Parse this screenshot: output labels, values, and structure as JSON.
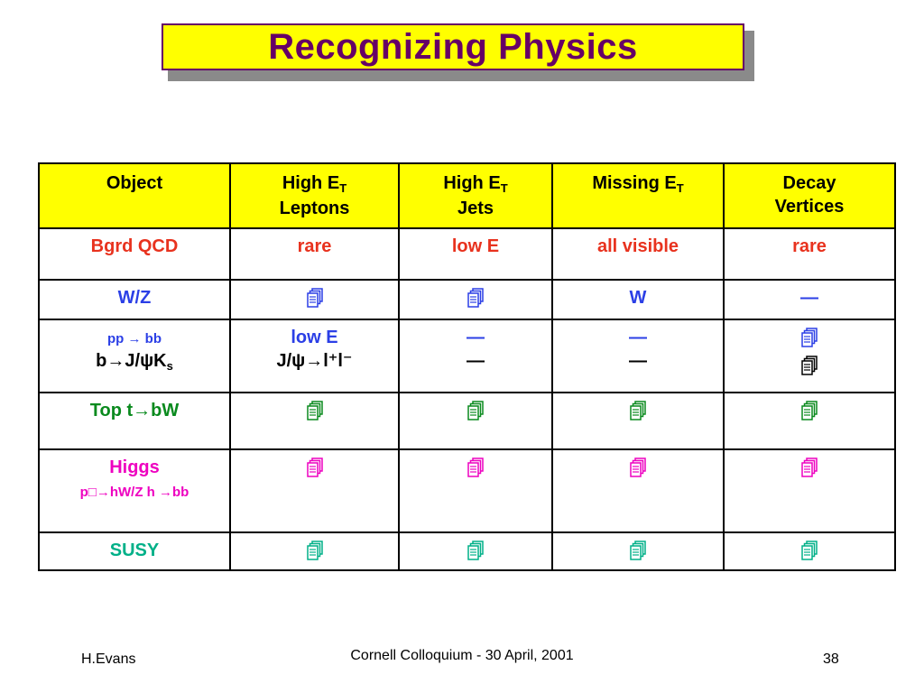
{
  "slide": {
    "title": "Recognizing Physics",
    "colors": {
      "title_text": "#660066",
      "title_bg": "#ffff00",
      "header_bg": "#ffff00",
      "red": "#e8321e",
      "blue": "#2b3fe6",
      "green": "#0a8a1e",
      "magenta": "#ee00c0",
      "teal": "#00b088"
    }
  },
  "table": {
    "headers": {
      "object": "Object",
      "leptons_line1": "High E",
      "leptons_sub": "T",
      "leptons_line2": "Leptons",
      "jets_line1": "High E",
      "jets_sub": "T",
      "jets_line2": "Jets",
      "missing_line1": "Missing E",
      "missing_sub": "T",
      "decay_line1": "Decay",
      "decay_line2": "Vertices"
    },
    "rows": {
      "bgrd": {
        "object": "Bgrd QCD",
        "leptons": "rare",
        "jets": "low E",
        "missing": "all visible",
        "decay": "rare"
      },
      "wz": {
        "object": "W/Z",
        "leptons_icon": "document-icon",
        "jets_icon": "document-icon",
        "missing": "W",
        "decay": "—"
      },
      "bb": {
        "object_line1": "pp → bb",
        "object_line2_prefix": "b→J/ψK",
        "object_line2_sub": "s",
        "leptons_line1": "low E",
        "leptons_line2": "J/ψ→l⁺l⁻",
        "jets_line1": "—",
        "jets_line2": "—",
        "missing_line1": "—",
        "missing_line2": "—",
        "decay_icon": "document-icon"
      },
      "top": {
        "object": "Top t→bW",
        "icon": "document-icon"
      },
      "higgs": {
        "object_line1": "Higgs",
        "object_line2": "p□→hW/Z h →bb",
        "icon": "document-icon"
      },
      "susy": {
        "object": "SUSY",
        "icon": "document-icon"
      }
    }
  },
  "footer": {
    "left": "H.Evans",
    "center": "Cornell Colloquium - 30 April, 2001",
    "right": "38"
  }
}
